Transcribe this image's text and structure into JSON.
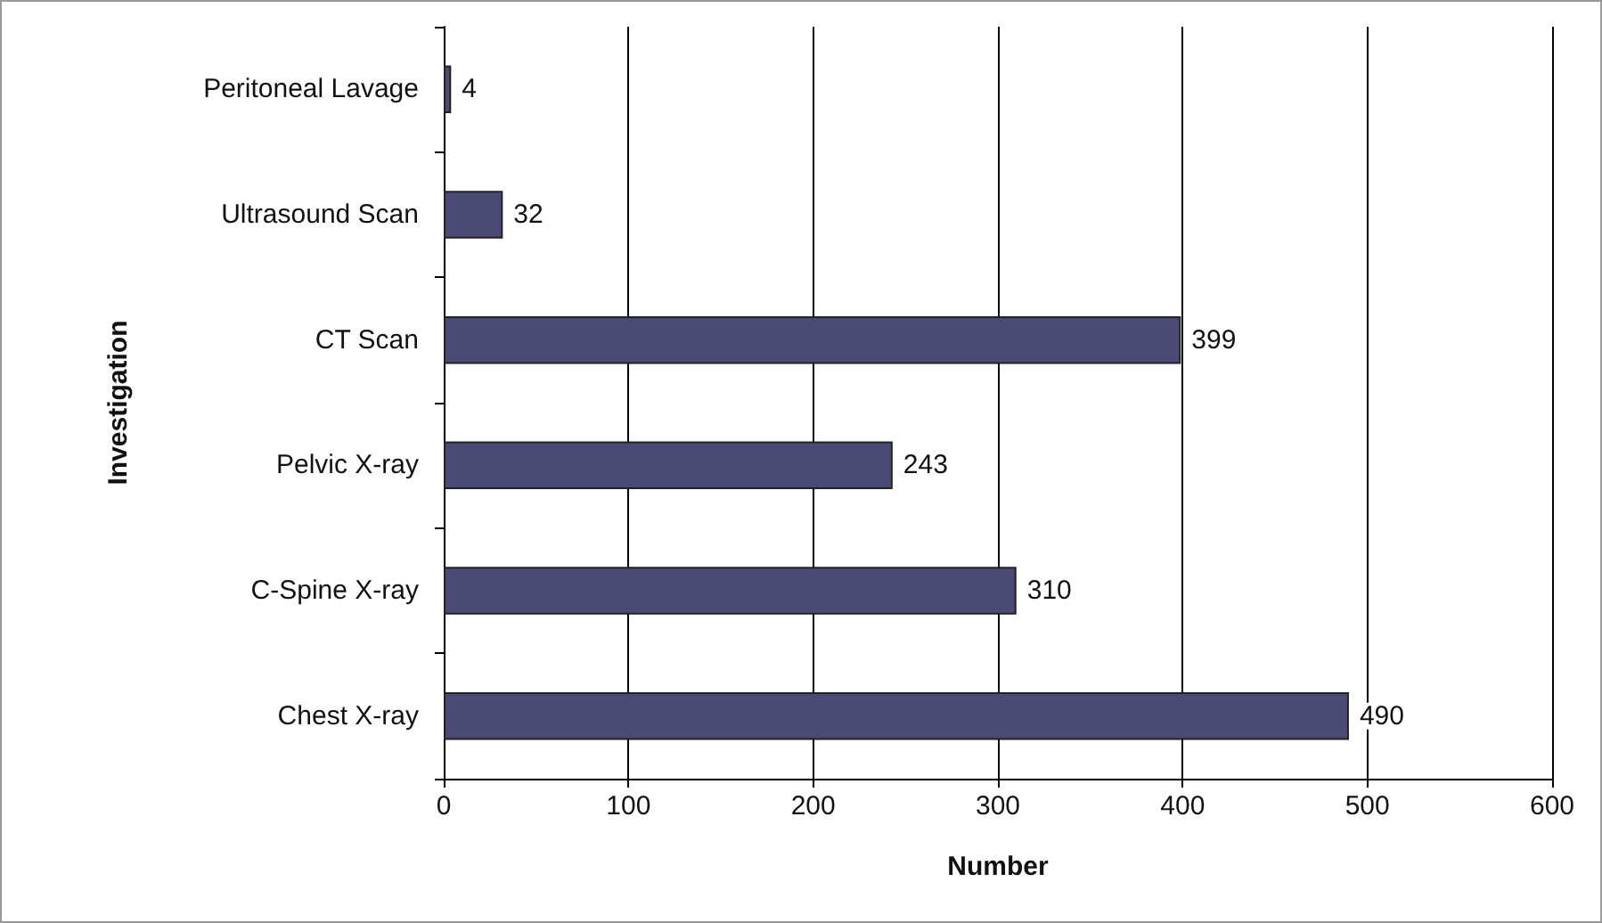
{
  "chart_data": {
    "type": "bar",
    "orientation": "horizontal",
    "xlabel": "Number",
    "ylabel": "Investigation",
    "categories": [
      "Peritoneal Lavage",
      "Ultrasound Scan",
      "CT Scan",
      "Pelvic X-ray",
      "C-Spine X-ray",
      "Chest X-ray"
    ],
    "values": [
      4,
      32,
      399,
      243,
      310,
      490
    ],
    "color": "#4b4a74",
    "xlim": [
      0,
      600
    ],
    "xticks": [
      0,
      100,
      200,
      300,
      400,
      500,
      600
    ],
    "grid": "x",
    "data_labels": true
  }
}
